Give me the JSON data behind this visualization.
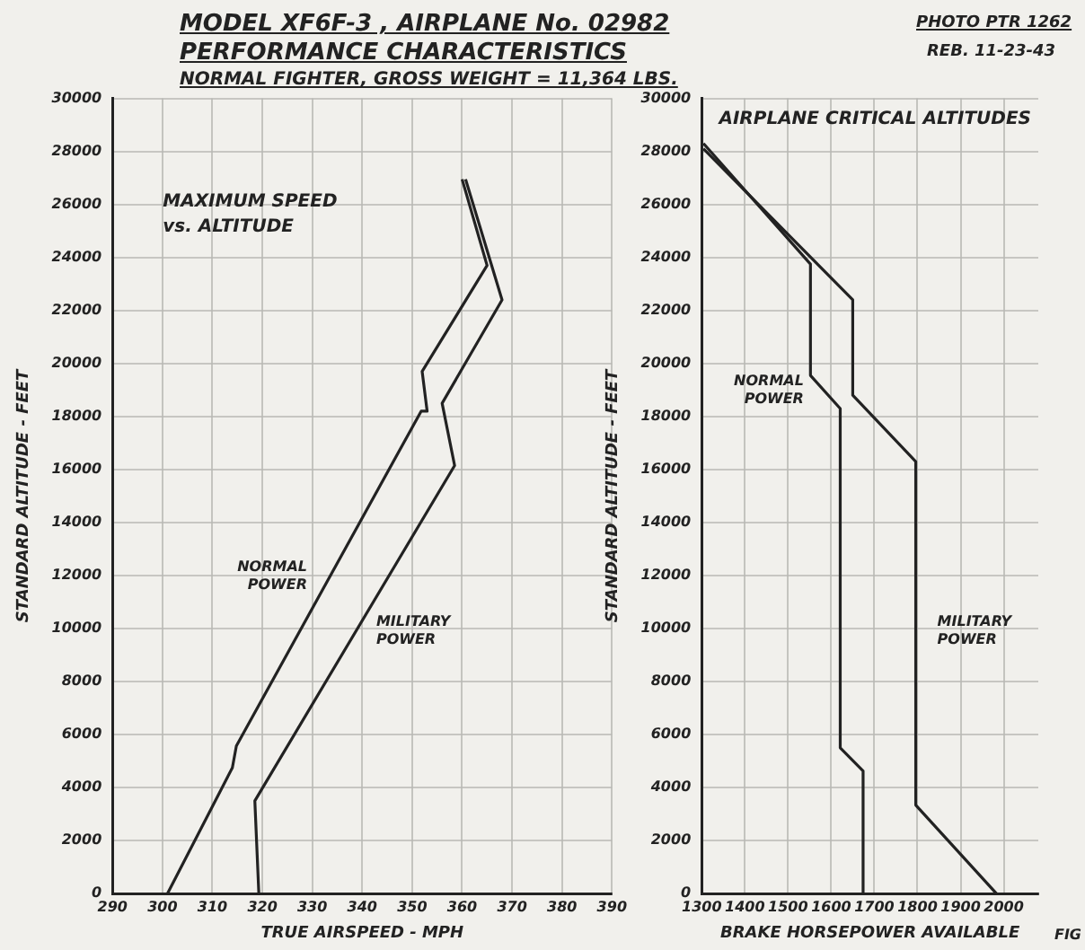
{
  "chart_data": [
    {
      "type": "line",
      "title": "MODEL XF6F-3 , AIRPLANE No. 02982",
      "subtitle": "PERFORMANCE CHARACTERISTICS",
      "xlabel": "TRUE AIRSPEED - MPH",
      "ylabel": "STANDARD ALTITUDE - FEET",
      "annotations": [
        "NORMAL FIGHTER, GROSS WEIGHT = 11,364 LBS.",
        "PHOTO PTR 1262",
        "REB. 11-23-43",
        "MAXIMUM SPEED\nvs. ALTITUDE"
      ],
      "series": [
        {
          "name": "NORMAL POWER",
          "color": "#222222",
          "x": [
            301,
            314,
            314.8,
            351.8,
            353,
            352,
            365,
            360
          ],
          "values": [
            0,
            4750,
            5570,
            18200,
            18200,
            19700,
            23700,
            26950
          ]
        },
        {
          "name": "MILITARY POWER",
          "color": "#222222",
          "x": [
            319.3,
            318.5,
            358.5,
            356,
            368,
            360.7
          ],
          "values": [
            0,
            3500,
            16150,
            18500,
            22400,
            26950
          ]
        }
      ],
      "xlim": [
        290,
        390
      ],
      "xticks": [
        290,
        300,
        310,
        320,
        330,
        340,
        350,
        360,
        370,
        380,
        390
      ],
      "ylim": [
        0,
        30000
      ],
      "yticks": [
        0,
        2000,
        4000,
        6000,
        8000,
        10000,
        12000,
        14000,
        16000,
        18000,
        20000,
        22000,
        24000,
        26000,
        28000,
        30000
      ],
      "grid": true
    },
    {
      "type": "line",
      "title": "AIRPLANE CRITICAL ALTITUDES",
      "xlabel": "BRAKE HORSEPOWER AVAILABLE",
      "ylabel": "STANDARD ALTITUDE - FEET",
      "annotations": [
        "FIG"
      ],
      "series": [
        {
          "name": "NORMAL POWER",
          "color": "#222222",
          "x": [
            1674,
            1674,
            1621,
            1621,
            1552,
            1552,
            1304
          ],
          "values": [
            0,
            4630,
            5500,
            18300,
            19550,
            23750,
            28300
          ]
        },
        {
          "name": "MILITARY POWER",
          "color": "#222222",
          "x": [
            1983,
            1796,
            1796,
            1650,
            1650,
            1304
          ],
          "values": [
            0,
            3340,
            16300,
            18800,
            22400,
            28100
          ]
        }
      ],
      "xlim": [
        1300,
        2080
      ],
      "xticks": [
        1300,
        1400,
        1500,
        1600,
        1700,
        1800,
        1900,
        2000
      ],
      "ylim": [
        0,
        30000
      ],
      "yticks": [
        0,
        2000,
        4000,
        6000,
        8000,
        10000,
        12000,
        14000,
        16000,
        18000,
        20000,
        22000,
        24000,
        26000,
        28000,
        30000
      ],
      "grid": true
    }
  ]
}
